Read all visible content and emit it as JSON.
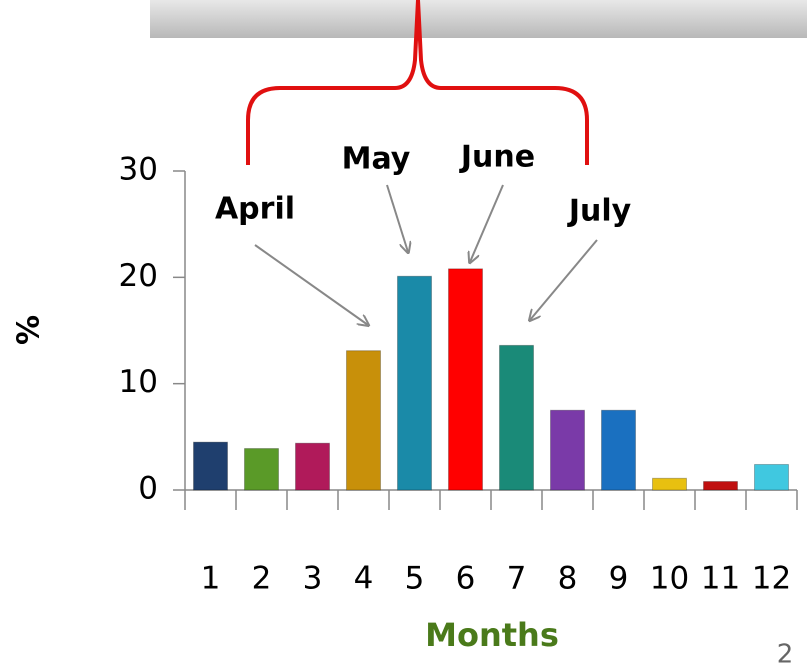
{
  "chart_data": {
    "type": "bar",
    "categories": [
      "1",
      "2",
      "3",
      "4",
      "5",
      "6",
      "7",
      "8",
      "9",
      "10",
      "11",
      "12"
    ],
    "values": [
      4.5,
      3.9,
      4.4,
      13.1,
      20.1,
      20.8,
      13.6,
      7.5,
      7.5,
      1.1,
      0.8,
      2.4
    ],
    "colors": [
      "#1f3f6e",
      "#5a9a28",
      "#b01a5a",
      "#c8900a",
      "#1a8aa8",
      "#ff0000",
      "#1a8a78",
      "#7a3aa8",
      "#1a70c0",
      "#e8c010",
      "#c01010",
      "#40c8e0"
    ],
    "ylim": [
      0,
      30
    ],
    "yticks": [
      0,
      10,
      20,
      30
    ],
    "ylabel": "%",
    "xlabel": "Months",
    "annotations": [
      "April",
      "May",
      "June",
      "July"
    ]
  },
  "page_number": "2"
}
